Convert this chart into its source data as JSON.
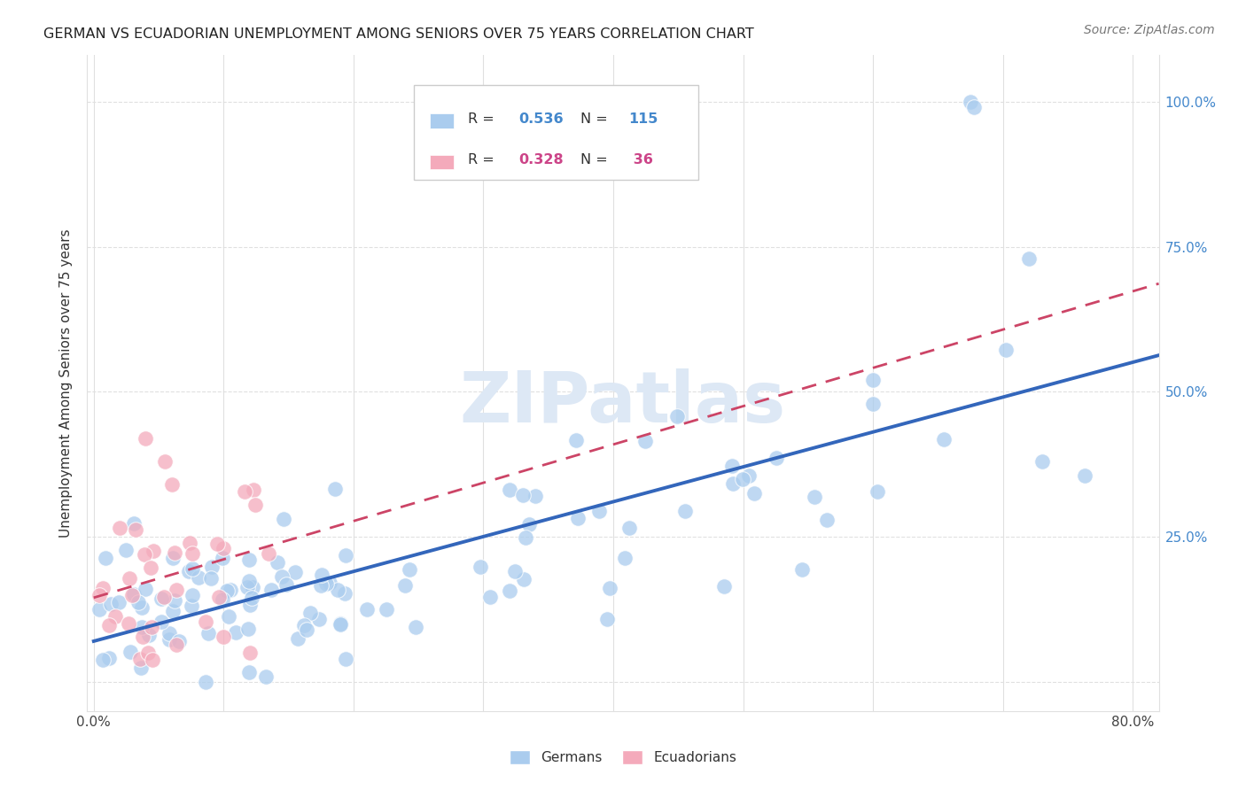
{
  "title": "GERMAN VS ECUADORIAN UNEMPLOYMENT AMONG SENIORS OVER 75 YEARS CORRELATION CHART",
  "source": "Source: ZipAtlas.com",
  "ylabel": "Unemployment Among Seniors over 75 years",
  "german_R": 0.536,
  "german_N": 115,
  "ecuadorian_R": 0.328,
  "ecuadorian_N": 36,
  "german_color": "#aaccee",
  "ecuadorian_color": "#f4aabb",
  "german_line_color": "#3366bb",
  "ecuadorian_line_color": "#cc4466",
  "watermark_color": "#dde8f5",
  "background_color": "#ffffff",
  "grid_color": "#e0e0e0",
  "right_tick_color": "#4488cc",
  "xlim_max": 0.82,
  "ylim_min": -0.05,
  "ylim_max": 1.08
}
